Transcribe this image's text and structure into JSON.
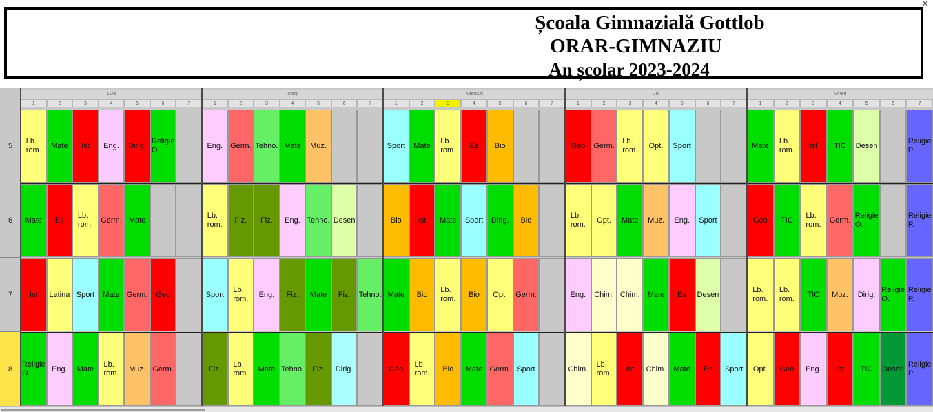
{
  "header": {
    "line1": "Școala Gimnazială Gottlob",
    "line2": "ORAR-GIMNAZIU",
    "line3": "An școlar 2023-2024"
  },
  "close_glyph": "×",
  "days": [
    "Luni",
    "Marți",
    "Miercuri",
    "Joi",
    "Vineri"
  ],
  "periods": [
    "1",
    "2",
    "3",
    "4",
    "5",
    "6",
    "7"
  ],
  "highlighted_period": {
    "day": 2,
    "period": 3
  },
  "highlighted_class": "8",
  "colors": {
    "Lb. rom.": "#ffff7a",
    "Mate": "#00dd00",
    "Ist": "#ff0000",
    "Eng.": "#ffccff",
    "Dirig.": "#ffccff",
    "Religie O.": "#00dd00",
    "Germ.": "#ff6666",
    "Tehno.": "#66ee66",
    "Muz.": "#ffc266",
    "Sport": "#99ffff",
    "Es": "#ff0000",
    "Bio": "#ffbb00",
    "Geo": "#ff0000",
    "Opt.": "#ffff7a",
    "TIC": "#00dd00",
    "Desen": "#ddffaa",
    "Religie P.": "#6666ff",
    "Fiz.": "#669900",
    "Latina": "#ffff7a",
    "Chim.": "#ffffcc",
    "empty": "#c8c8c8"
  },
  "dark_overrides": {
    "Desen-6-5": "#009933",
    "Desen-8-4": "#009933",
    "Dirig.-8-1": "#aaffff",
    "Dirig.-5-0": "#ff0000",
    "Dirig.-6-2": "#00dd00"
  },
  "classes": [
    {
      "label": "5",
      "days": [
        [
          "Lb.\nrom.",
          "Mate",
          "Ist",
          "Eng.",
          "Dirig.",
          "Religie\nO.",
          ""
        ],
        [
          "Eng.",
          "Germ.",
          "Tehno.",
          "Mate",
          "Muz.",
          "",
          ""
        ],
        [
          "Sport",
          "Mate",
          "Lb.\nrom.",
          "Es",
          "Bio",
          "",
          ""
        ],
        [
          "Geo",
          "Germ.",
          "Lb.\nrom.",
          "Opt.",
          "Sport",
          "",
          ""
        ],
        [
          "Mate",
          "Lb.\nrom.",
          "Ist",
          "TIC",
          "Desen",
          "",
          "Religie\nP."
        ]
      ]
    },
    {
      "label": "6",
      "days": [
        [
          "Mate",
          "Es",
          "Lb.\nrom.",
          "Germ.",
          "Mate",
          "",
          ""
        ],
        [
          "Lb.\nrom.",
          "Fiz.",
          "Fiz.",
          "Eng.",
          "Tehno.",
          "Desen",
          ""
        ],
        [
          "Bio",
          "Ist",
          "Mate",
          "Sport",
          "Dirig.",
          "Bio",
          ""
        ],
        [
          "Lb.\nrom.",
          "Opt.",
          "Mate",
          "Muz.",
          "Eng.",
          "Sport",
          ""
        ],
        [
          "Geo",
          "TIC",
          "Lb.\nrom.",
          "Germ.",
          "Religie\nO.",
          "",
          "Religie\nP."
        ]
      ]
    },
    {
      "label": "7",
      "days": [
        [
          "Ist",
          "Latina",
          "Sport",
          "Mate",
          "Germ.",
          "Geo",
          ""
        ],
        [
          "Sport",
          "Lb.\nrom.",
          "Eng.",
          "Fiz.",
          "Mate",
          "Fiz.",
          "Tehno."
        ],
        [
          "Mate",
          "Bio",
          "Lb.\nrom.",
          "Bio",
          "Opt.",
          "Germ.",
          ""
        ],
        [
          "Eng.",
          "Chim.",
          "Chim.",
          "Mate",
          "Es",
          "Desen",
          ""
        ],
        [
          "Lb.\nrom.",
          "Lb.\nrom.",
          "TIC",
          "Muz.",
          "Dirig.",
          "Religie\nO.",
          "Religie\nP."
        ]
      ]
    },
    {
      "label": "8",
      "days": [
        [
          "Religie\nO.",
          "Eng.",
          "Mate",
          "Lb.\nrom.",
          "Muz.",
          "Germ.",
          ""
        ],
        [
          "Fiz.",
          "Lb.\nrom.",
          "Mate",
          "Tehno.",
          "Fiz.",
          "Dirig.",
          ""
        ],
        [
          "Geo",
          "Lb.\nrom.",
          "Bio",
          "Mate",
          "Germ.",
          "Sport",
          ""
        ],
        [
          "Chim.",
          "Lb.\nrom.",
          "Ist",
          "Chim.",
          "Mate",
          "Es",
          "Sport"
        ],
        [
          "Opt.",
          "Geo",
          "Eng.",
          "Ist",
          "TIC",
          "Desen",
          "Religie\nP."
        ]
      ]
    }
  ]
}
